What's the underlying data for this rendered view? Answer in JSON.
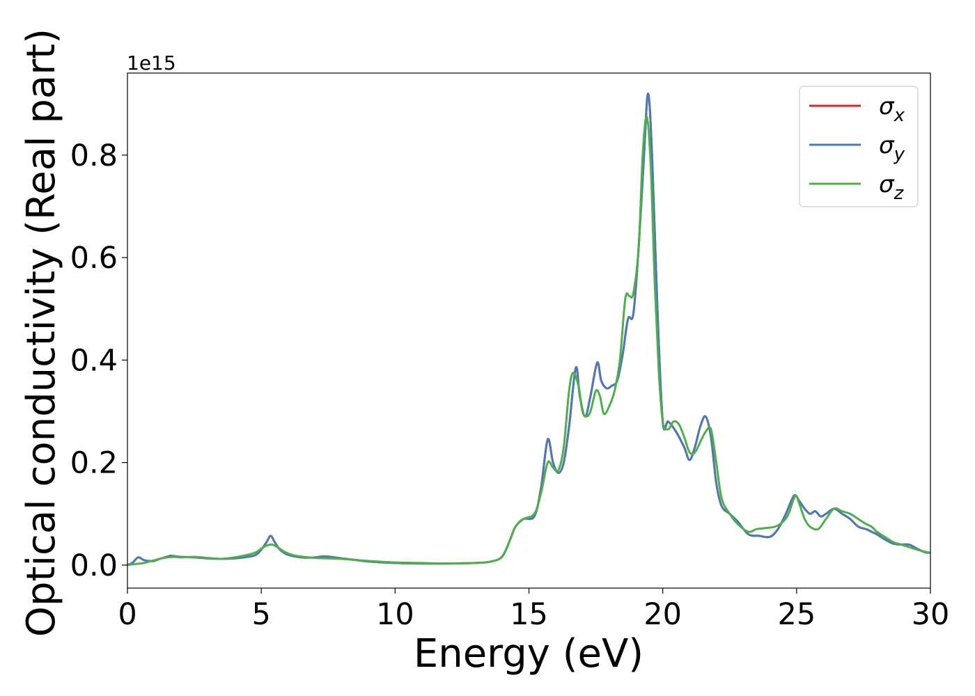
{
  "chart_data": {
    "type": "line",
    "title": "",
    "xlabel": "Energy (eV)",
    "ylabel": "Optical conductivity (Real part)",
    "y_offset_text": "1e15",
    "y_scale_factor": 1000000000000000.0,
    "xlim": [
      0,
      30
    ],
    "ylim": [
      -0.045,
      0.96
    ],
    "x_ticks": [
      0,
      5,
      10,
      15,
      20,
      25,
      30
    ],
    "x_tick_labels": [
      "0",
      "5",
      "10",
      "15",
      "20",
      "25",
      "30"
    ],
    "y_ticks": [
      0.0,
      0.2,
      0.4,
      0.6,
      0.8
    ],
    "y_tick_labels": [
      "0.0",
      "0.2",
      "0.4",
      "0.6",
      "0.8"
    ],
    "grid": false,
    "legend_position": "top-right",
    "series": [
      {
        "name": "σx",
        "legend_symbol": "σ",
        "legend_subscript": "x",
        "color": "#d62728",
        "x": [
          0,
          0.2,
          0.4,
          0.6,
          0.8,
          1.0,
          1.2,
          1.4,
          1.6,
          1.8,
          2.0,
          2.5,
          3.0,
          3.5,
          4.0,
          4.5,
          4.8,
          5.0,
          5.2,
          5.35,
          5.5,
          5.7,
          6.0,
          6.5,
          7.0,
          7.3,
          7.6,
          8.0,
          8.5,
          9.0,
          10.0,
          11.0,
          12.0,
          13.0,
          13.5,
          13.9,
          14.1,
          14.3,
          14.5,
          14.8,
          15.2,
          15.45,
          15.7,
          15.9,
          16.1,
          16.3,
          16.5,
          16.75,
          16.9,
          17.1,
          17.3,
          17.55,
          17.7,
          17.9,
          18.1,
          18.3,
          18.5,
          18.7,
          18.9,
          19.1,
          19.3,
          19.45,
          19.6,
          19.8,
          20.0,
          20.2,
          20.5,
          20.8,
          21.0,
          21.2,
          21.4,
          21.6,
          21.8,
          22.0,
          22.2,
          22.5,
          22.8,
          23.2,
          23.6,
          24.0,
          24.3,
          24.6,
          24.9,
          25.1,
          25.3,
          25.5,
          25.7,
          25.9,
          26.1,
          26.4,
          26.7,
          27.0,
          27.3,
          27.6,
          27.8,
          28.0,
          28.3,
          28.6,
          28.9,
          29.2,
          29.5,
          29.8,
          30.0
        ],
        "values": [
          0.0,
          0.005,
          0.015,
          0.01,
          0.008,
          0.008,
          0.012,
          0.015,
          0.018,
          0.017,
          0.016,
          0.015,
          0.013,
          0.012,
          0.013,
          0.016,
          0.02,
          0.03,
          0.045,
          0.057,
          0.045,
          0.03,
          0.02,
          0.015,
          0.015,
          0.017,
          0.016,
          0.013,
          0.01,
          0.007,
          0.004,
          0.003,
          0.003,
          0.004,
          0.006,
          0.012,
          0.025,
          0.05,
          0.075,
          0.09,
          0.095,
          0.15,
          0.245,
          0.2,
          0.18,
          0.2,
          0.27,
          0.385,
          0.33,
          0.29,
          0.33,
          0.395,
          0.36,
          0.345,
          0.35,
          0.36,
          0.41,
          0.48,
          0.49,
          0.62,
          0.8,
          0.92,
          0.8,
          0.5,
          0.28,
          0.28,
          0.26,
          0.23,
          0.205,
          0.23,
          0.27,
          0.29,
          0.25,
          0.16,
          0.115,
          0.1,
          0.085,
          0.06,
          0.057,
          0.055,
          0.07,
          0.1,
          0.135,
          0.125,
          0.11,
          0.1,
          0.105,
          0.095,
          0.1,
          0.11,
          0.1,
          0.09,
          0.075,
          0.07,
          0.065,
          0.06,
          0.05,
          0.042,
          0.04,
          0.04,
          0.032,
          0.025,
          0.024
        ]
      },
      {
        "name": "σy",
        "legend_symbol": "σ",
        "legend_subscript": "y",
        "color": "#4a7ab8",
        "x": [
          0,
          0.2,
          0.4,
          0.6,
          0.8,
          1.0,
          1.2,
          1.4,
          1.6,
          1.8,
          2.0,
          2.5,
          3.0,
          3.5,
          4.0,
          4.5,
          4.8,
          5.0,
          5.2,
          5.35,
          5.5,
          5.7,
          6.0,
          6.5,
          7.0,
          7.3,
          7.6,
          8.0,
          8.5,
          9.0,
          10.0,
          11.0,
          12.0,
          13.0,
          13.5,
          13.9,
          14.1,
          14.3,
          14.5,
          14.8,
          15.2,
          15.45,
          15.7,
          15.9,
          16.1,
          16.3,
          16.5,
          16.75,
          16.9,
          17.1,
          17.3,
          17.55,
          17.7,
          17.9,
          18.1,
          18.3,
          18.5,
          18.7,
          18.9,
          19.1,
          19.3,
          19.45,
          19.6,
          19.8,
          20.0,
          20.2,
          20.5,
          20.8,
          21.0,
          21.2,
          21.4,
          21.6,
          21.8,
          22.0,
          22.2,
          22.5,
          22.8,
          23.2,
          23.6,
          24.0,
          24.3,
          24.6,
          24.9,
          25.1,
          25.3,
          25.5,
          25.7,
          25.9,
          26.1,
          26.4,
          26.7,
          27.0,
          27.3,
          27.6,
          27.8,
          28.0,
          28.3,
          28.6,
          28.9,
          29.2,
          29.5,
          29.8,
          30.0
        ],
        "values": [
          0.0,
          0.005,
          0.015,
          0.01,
          0.008,
          0.008,
          0.012,
          0.015,
          0.018,
          0.017,
          0.016,
          0.015,
          0.013,
          0.012,
          0.013,
          0.016,
          0.02,
          0.03,
          0.045,
          0.057,
          0.045,
          0.03,
          0.02,
          0.015,
          0.015,
          0.017,
          0.016,
          0.013,
          0.01,
          0.007,
          0.004,
          0.003,
          0.003,
          0.004,
          0.006,
          0.012,
          0.025,
          0.05,
          0.075,
          0.09,
          0.095,
          0.15,
          0.245,
          0.2,
          0.18,
          0.2,
          0.27,
          0.385,
          0.33,
          0.29,
          0.33,
          0.395,
          0.36,
          0.345,
          0.35,
          0.36,
          0.41,
          0.48,
          0.49,
          0.62,
          0.8,
          0.92,
          0.8,
          0.5,
          0.28,
          0.28,
          0.26,
          0.23,
          0.205,
          0.23,
          0.27,
          0.29,
          0.25,
          0.16,
          0.115,
          0.1,
          0.085,
          0.06,
          0.057,
          0.055,
          0.07,
          0.1,
          0.135,
          0.125,
          0.11,
          0.1,
          0.105,
          0.095,
          0.1,
          0.11,
          0.1,
          0.09,
          0.075,
          0.07,
          0.065,
          0.06,
          0.05,
          0.042,
          0.04,
          0.04,
          0.032,
          0.025,
          0.024
        ]
      },
      {
        "name": "σz",
        "legend_symbol": "σ",
        "legend_subscript": "z",
        "color": "#4daf4a",
        "x": [
          0,
          0.3,
          0.6,
          0.9,
          1.2,
          1.5,
          1.8,
          2.0,
          2.5,
          3.0,
          3.5,
          4.0,
          4.5,
          4.8,
          5.0,
          5.2,
          5.4,
          5.6,
          5.9,
          6.3,
          7.0,
          7.5,
          8.0,
          8.5,
          9.0,
          10.0,
          11.0,
          12.0,
          13.0,
          13.5,
          13.9,
          14.1,
          14.3,
          14.5,
          14.8,
          15.2,
          15.45,
          15.7,
          15.9,
          16.1,
          16.3,
          16.5,
          16.65,
          16.85,
          17.0,
          17.15,
          17.3,
          17.5,
          17.65,
          17.8,
          18.0,
          18.2,
          18.4,
          18.6,
          18.75,
          18.9,
          19.1,
          19.25,
          19.4,
          19.55,
          19.7,
          19.85,
          20.0,
          20.2,
          20.4,
          20.6,
          20.8,
          21.0,
          21.2,
          21.4,
          21.6,
          21.8,
          22.0,
          22.2,
          22.5,
          22.8,
          23.2,
          23.5,
          23.8,
          24.2,
          24.5,
          24.7,
          24.95,
          25.1,
          25.3,
          25.5,
          25.8,
          26.1,
          26.4,
          26.7,
          27.0,
          27.3,
          27.6,
          27.8,
          28.0,
          28.3,
          28.6,
          28.9,
          29.2,
          29.5,
          29.8,
          30.0
        ],
        "values": [
          0.0,
          0.002,
          0.004,
          0.008,
          0.012,
          0.015,
          0.016,
          0.015,
          0.016,
          0.014,
          0.012,
          0.015,
          0.02,
          0.025,
          0.032,
          0.038,
          0.04,
          0.035,
          0.025,
          0.018,
          0.014,
          0.013,
          0.012,
          0.01,
          0.008,
          0.005,
          0.004,
          0.003,
          0.004,
          0.006,
          0.012,
          0.025,
          0.05,
          0.075,
          0.09,
          0.1,
          0.14,
          0.2,
          0.19,
          0.185,
          0.23,
          0.34,
          0.375,
          0.35,
          0.3,
          0.29,
          0.3,
          0.34,
          0.33,
          0.295,
          0.31,
          0.34,
          0.4,
          0.52,
          0.525,
          0.53,
          0.62,
          0.8,
          0.875,
          0.78,
          0.55,
          0.38,
          0.28,
          0.265,
          0.28,
          0.275,
          0.25,
          0.22,
          0.22,
          0.24,
          0.26,
          0.265,
          0.2,
          0.13,
          0.1,
          0.08,
          0.065,
          0.07,
          0.072,
          0.075,
          0.085,
          0.1,
          0.135,
          0.12,
          0.09,
          0.075,
          0.07,
          0.09,
          0.11,
          0.105,
          0.1,
          0.09,
          0.08,
          0.075,
          0.065,
          0.055,
          0.045,
          0.04,
          0.035,
          0.03,
          0.026,
          0.024
        ]
      }
    ]
  }
}
